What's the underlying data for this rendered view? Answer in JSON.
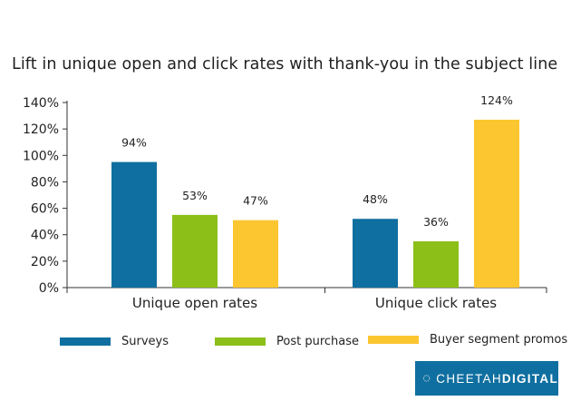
{
  "chart_data": {
    "type": "bar",
    "title": "Lift in unique open and click rates with thank-you in the subject line",
    "categories": [
      "Unique open rates",
      "Unique click rates"
    ],
    "series": [
      {
        "name": "Surveys",
        "color": "#0f6fa0",
        "values": [
          94,
          48
        ],
        "labels": [
          "94%",
          "48%"
        ],
        "rendered_values": [
          95,
          52
        ]
      },
      {
        "name": "Post purchase",
        "color": "#8cbf18",
        "values": [
          53,
          36
        ],
        "labels": [
          "53%",
          "36%"
        ],
        "rendered_values": [
          55,
          35
        ]
      },
      {
        "name": "Buyer segment promos",
        "color": "#fcc630",
        "values": [
          47,
          124
        ],
        "labels": [
          "47%",
          "124%"
        ],
        "rendered_values": [
          51,
          127
        ]
      }
    ],
    "ylim": [
      0,
      140
    ],
    "yticks": [
      0,
      20,
      40,
      60,
      80,
      100,
      120,
      140
    ],
    "ytick_labels": [
      "0%",
      "20%",
      "40%",
      "60%",
      "80%",
      "100%",
      "120%",
      "140%"
    ],
    "ylabel_unit": "%",
    "grid": false,
    "legend_position": "bottom"
  },
  "logo": {
    "name": "CHEETAH DIGITAL",
    "part1": "CHEETAH",
    "part2": "DIGITAL",
    "icon": "dotted-ring-icon"
  }
}
